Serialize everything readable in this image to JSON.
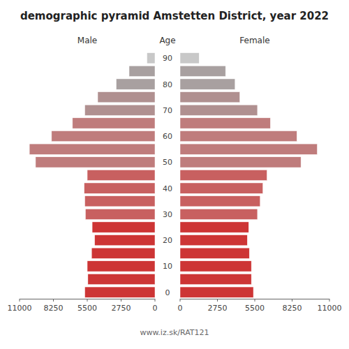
{
  "chart_data": {
    "type": "pyramid",
    "orientation": "horizontal",
    "title": "demographic pyramid Amstetten District, year 2022",
    "ylabel": "Age",
    "annotations": [
      "www.iz.sk/RAT121"
    ],
    "categories": [
      "0",
      null,
      "10",
      null,
      "20",
      null,
      "30",
      null,
      "40",
      null,
      "50",
      null,
      "60",
      null,
      "70",
      null,
      "80",
      null,
      "90"
    ],
    "series": [
      {
        "name": "Male",
        "values": [
          5700,
          5450,
          5500,
          5150,
          4900,
          5100,
          5650,
          5700,
          5750,
          5500,
          9700,
          10200,
          8400,
          6700,
          5700,
          4650,
          3150,
          2100,
          650
        ],
        "colors": [
          "#cd3535",
          "#cd3535",
          "#cd3535",
          "#cd3535",
          "#cd3535",
          "#cd3535",
          "#c86060",
          "#c86060",
          "#c86060",
          "#c86060",
          "#bf7c7c",
          "#bf7c7c",
          "#bf7c7c",
          "#bf7c7c",
          "#b09090",
          "#b09090",
          "#a8a0a0",
          "#a8a0a0",
          "#c8c8c8"
        ]
      },
      {
        "name": "Female",
        "values": [
          5400,
          5250,
          5250,
          5100,
          4950,
          5050,
          5700,
          5900,
          6100,
          6400,
          8900,
          10100,
          8600,
          6650,
          5700,
          4400,
          4050,
          3350,
          1400
        ],
        "colors": [
          "#cd3535",
          "#cd3535",
          "#cd3535",
          "#cd3535",
          "#cd3535",
          "#cd3535",
          "#c86060",
          "#c86060",
          "#c86060",
          "#c86060",
          "#bf7c7c",
          "#bf7c7c",
          "#bf7c7c",
          "#bf7c7c",
          "#b09090",
          "#b09090",
          "#a8a0a0",
          "#a8a0a0",
          "#c8c8c8"
        ]
      }
    ],
    "xlim": [
      0,
      11000
    ],
    "xticks": [
      0,
      2750,
      5500,
      8250,
      11000
    ],
    "grid": false
  }
}
